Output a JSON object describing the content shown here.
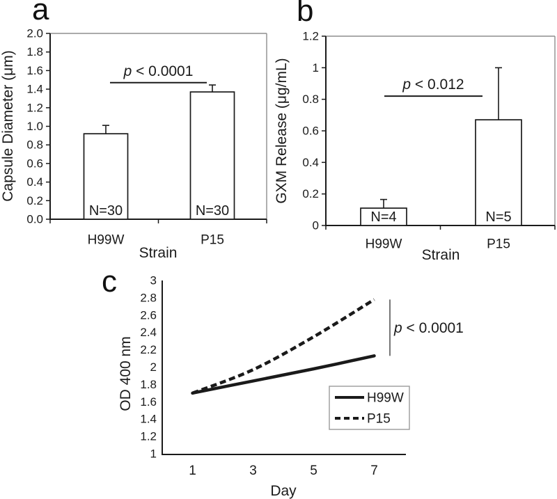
{
  "figure": {
    "background": "#ffffff",
    "ink": "#1a1a1a",
    "box_border": "#8d8d8d",
    "bracket_color": "#555555",
    "legend_border": "#999999",
    "bar_fill": "#ffffff"
  },
  "chart_data": [
    {
      "panel": "a",
      "type": "bar",
      "title": "a",
      "ylabel": "Capsule Diameter (μm)",
      "xlabel": "Strain",
      "categories": [
        "H99W",
        "P15"
      ],
      "values": [
        0.92,
        1.37
      ],
      "errors_plus": [
        0.09,
        0.075
      ],
      "bar_labels": [
        "N=30",
        "N=30"
      ],
      "ylim": [
        0,
        2.0
      ],
      "yticks": [
        0,
        0.2,
        0.4,
        0.6,
        0.8,
        1.0,
        1.2,
        1.4,
        1.6,
        1.8,
        2.0
      ],
      "ytick_labels": [
        "0.0",
        "0.2",
        "0.4",
        "0.6",
        "0.8",
        "1.0",
        "1.2",
        "1.4",
        "1.6",
        "1.8",
        "2.0"
      ],
      "significance": {
        "p_symbol": "p",
        "comparison": " < 0.0001",
        "y": 1.47
      },
      "grid": false,
      "box": true
    },
    {
      "panel": "b",
      "type": "bar",
      "title": "b",
      "ylabel": "GXM Release (μg/mL)",
      "xlabel": "Strain",
      "categories": [
        "H99W",
        "P15"
      ],
      "values": [
        0.11,
        0.67
      ],
      "errors_plus": [
        0.055,
        0.33
      ],
      "bar_labels": [
        "N=4",
        "N=5"
      ],
      "ylim": [
        0,
        1.2
      ],
      "yticks": [
        0,
        0.2,
        0.4,
        0.6,
        0.8,
        1.0,
        1.2
      ],
      "ytick_labels": [
        "0",
        "0.2",
        "0.4",
        "0.6",
        "0.8",
        "1",
        "1.2"
      ],
      "significance": {
        "p_symbol": "p",
        "comparison": " < 0.012",
        "y": 0.82
      },
      "grid": false,
      "box": true
    },
    {
      "panel": "c",
      "type": "line",
      "title": "c",
      "ylabel": "OD 400 nm",
      "xlabel": "Day",
      "x": [
        1,
        3,
        5,
        7
      ],
      "xtick_labels": [
        "1",
        "3",
        "5",
        "7"
      ],
      "series": [
        {
          "name": "H99W",
          "style": "solid",
          "values": [
            1.7,
            1.84,
            1.98,
            2.13
          ]
        },
        {
          "name": "P15",
          "style": "dashed",
          "values": [
            1.7,
            1.97,
            2.35,
            2.78
          ]
        }
      ],
      "ylim": [
        1,
        3
      ],
      "yticks": [
        1,
        1.2,
        1.4,
        1.6,
        1.8,
        2.0,
        2.2,
        2.4,
        2.6,
        2.8,
        3.0
      ],
      "ytick_labels": [
        "1",
        "1.2",
        "1.4",
        "1.6",
        "1.8",
        "2",
        "2.2",
        "2.4",
        "2.6",
        "2.8",
        "3"
      ],
      "annotation": {
        "p_symbol": "p",
        "comparison": " < 0.0001"
      },
      "legend": {
        "entries": [
          "H99W",
          "P15"
        ],
        "position": "lower right"
      },
      "grid": false,
      "box": false
    }
  ]
}
